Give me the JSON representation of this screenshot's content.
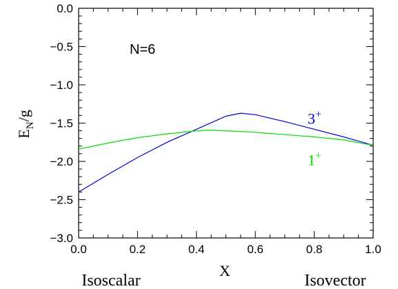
{
  "chart_data": {
    "type": "line",
    "xlabel": "X",
    "ylabel_main": "E",
    "ylabel_sub": "N",
    "ylabel_tail": "/g",
    "annotation": "N=6",
    "x_start_label": "Isoscalar",
    "x_end_label": "Isovector",
    "xlim": [
      0.0,
      1.0
    ],
    "ylim": [
      -3.0,
      0.0
    ],
    "x_ticks": [
      "0.0",
      "0.2",
      "0.4",
      "0.6",
      "0.8",
      "1.0"
    ],
    "y_ticks": [
      "0.0",
      "−0.5",
      "−1.0",
      "−1.5",
      "−2.0",
      "−2.5",
      "−3.0"
    ],
    "grid": false,
    "series": [
      {
        "name": "3",
        "sup": "+",
        "color": "#0000dd",
        "x": [
          0.0,
          0.1,
          0.2,
          0.3,
          0.4,
          0.5,
          0.55,
          0.6,
          0.7,
          0.8,
          0.9,
          1.0
        ],
        "y": [
          -2.4,
          -2.17,
          -1.95,
          -1.75,
          -1.58,
          -1.41,
          -1.37,
          -1.39,
          -1.48,
          -1.58,
          -1.68,
          -1.79
        ]
      },
      {
        "name": "1",
        "sup": "+",
        "color": "#00dd00",
        "x": [
          0.0,
          0.1,
          0.2,
          0.3,
          0.4,
          0.45,
          0.5,
          0.6,
          0.7,
          0.8,
          0.9,
          1.0
        ],
        "y": [
          -1.84,
          -1.76,
          -1.69,
          -1.64,
          -1.6,
          -1.59,
          -1.6,
          -1.62,
          -1.65,
          -1.68,
          -1.72,
          -1.79
        ]
      }
    ]
  }
}
